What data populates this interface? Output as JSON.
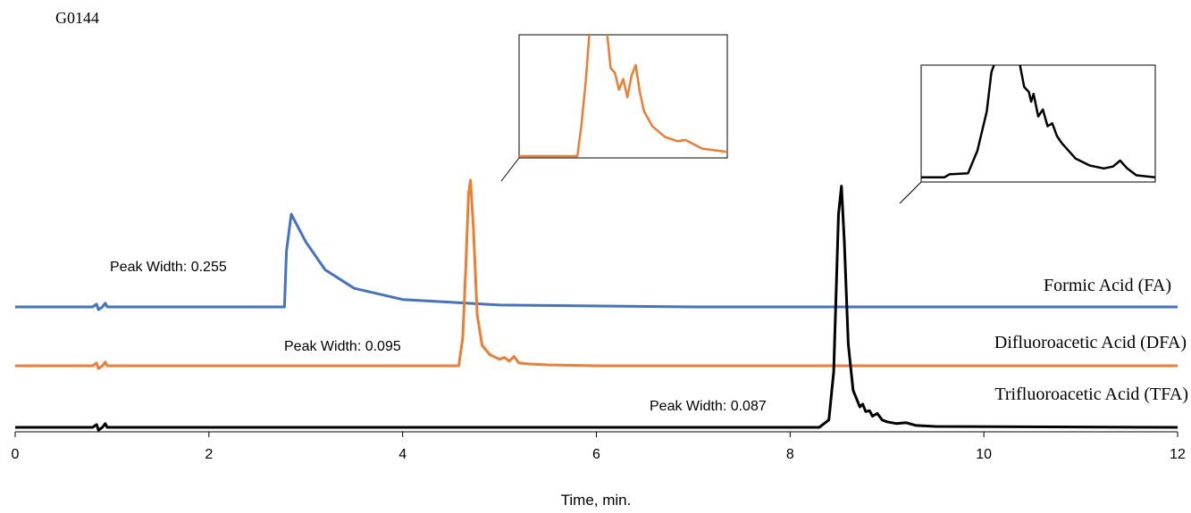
{
  "chart_data": {
    "type": "line",
    "figure_id": "G0144",
    "xlabel": "Time, min.",
    "ylabel": "",
    "xlim": [
      0,
      12
    ],
    "x_ticks": [
      "0",
      "2",
      "4",
      "6",
      "8",
      "10",
      "12"
    ],
    "grid": false,
    "series": [
      {
        "name": "Formic Acid (FA)",
        "color": "#4472C4",
        "peak_label": "Peak Width: 0.255",
        "x": [
          0,
          0.8,
          0.84,
          0.86,
          0.9,
          0.93,
          0.95,
          1.0,
          2.78,
          2.8,
          2.85,
          2.9,
          3.0,
          3.2,
          3.5,
          4.0,
          5.0,
          7.0,
          12
        ],
        "y": [
          0.0,
          0.0,
          0.03,
          -0.03,
          0.0,
          0.04,
          0.0,
          0.0,
          0.0,
          0.6,
          1.0,
          0.9,
          0.7,
          0.4,
          0.2,
          0.08,
          0.02,
          0.0,
          0.0
        ]
      },
      {
        "name": "Difluoroacetic Acid (DFA)",
        "color": "#ED7D31",
        "peak_label": "Peak Width: 0.095",
        "x": [
          0,
          0.8,
          0.84,
          0.86,
          0.9,
          0.93,
          0.95,
          1.0,
          4.58,
          4.62,
          4.65,
          4.68,
          4.7,
          4.73,
          4.77,
          4.82,
          4.9,
          5.0,
          5.05,
          5.1,
          5.15,
          5.2,
          5.3,
          5.5,
          6.0,
          8.0,
          12
        ],
        "y": [
          0.0,
          0.0,
          0.03,
          -0.03,
          0.0,
          0.04,
          0.0,
          0.0,
          0.0,
          0.3,
          1.0,
          1.85,
          2.0,
          1.5,
          0.55,
          0.22,
          0.12,
          0.07,
          0.09,
          0.05,
          0.1,
          0.03,
          0.02,
          0.01,
          0.0,
          0.0,
          0.0
        ]
      },
      {
        "name": "Trifluoroacetic Acid (TFA)",
        "color": "#000000",
        "peak_label": "Peak Width: 0.087",
        "x": [
          0,
          0.8,
          0.84,
          0.86,
          0.9,
          0.93,
          0.95,
          1.0,
          8.3,
          8.4,
          8.45,
          8.5,
          8.53,
          8.56,
          8.6,
          8.65,
          8.72,
          8.75,
          8.78,
          8.82,
          8.85,
          8.9,
          8.95,
          9.0,
          9.1,
          9.2,
          9.3,
          9.5,
          12
        ],
        "y": [
          0.0,
          0.0,
          0.03,
          -0.03,
          0.0,
          0.04,
          0.0,
          0.0,
          0.0,
          0.08,
          0.6,
          2.3,
          2.6,
          2.0,
          0.9,
          0.4,
          0.22,
          0.25,
          0.17,
          0.18,
          0.12,
          0.15,
          0.08,
          0.06,
          0.04,
          0.05,
          0.02,
          0.01,
          0.0
        ]
      }
    ],
    "inset_dfa": {
      "color": "#ED7D31",
      "x": [
        0,
        0.28,
        0.3,
        0.32,
        0.34,
        0.42,
        0.44,
        0.46,
        0.48,
        0.5,
        0.52,
        0.54,
        0.56,
        0.58,
        0.6,
        0.64,
        0.7,
        0.76,
        0.8,
        0.88,
        1.0
      ],
      "y": [
        0,
        0,
        0.3,
        0.7,
        1.2,
        1.2,
        0.82,
        0.78,
        0.62,
        0.72,
        0.55,
        0.75,
        0.85,
        0.6,
        0.42,
        0.28,
        0.18,
        0.14,
        0.15,
        0.07,
        0.04
      ]
    },
    "inset_tfa": {
      "color": "#000000",
      "x": [
        0,
        0.1,
        0.12,
        0.2,
        0.24,
        0.28,
        0.3,
        0.33,
        0.36,
        0.42,
        0.44,
        0.46,
        0.47,
        0.48,
        0.5,
        0.52,
        0.54,
        0.56,
        0.58,
        0.6,
        0.66,
        0.72,
        0.78,
        0.82,
        0.85,
        0.88,
        0.92,
        1.0
      ],
      "y": [
        0.03,
        0.03,
        0.06,
        0.07,
        0.3,
        0.7,
        1.1,
        1.3,
        1.4,
        1.2,
        0.95,
        0.9,
        0.8,
        0.88,
        0.65,
        0.72,
        0.55,
        0.58,
        0.45,
        0.38,
        0.22,
        0.15,
        0.12,
        0.14,
        0.2,
        0.12,
        0.05,
        0.03
      ]
    }
  }
}
